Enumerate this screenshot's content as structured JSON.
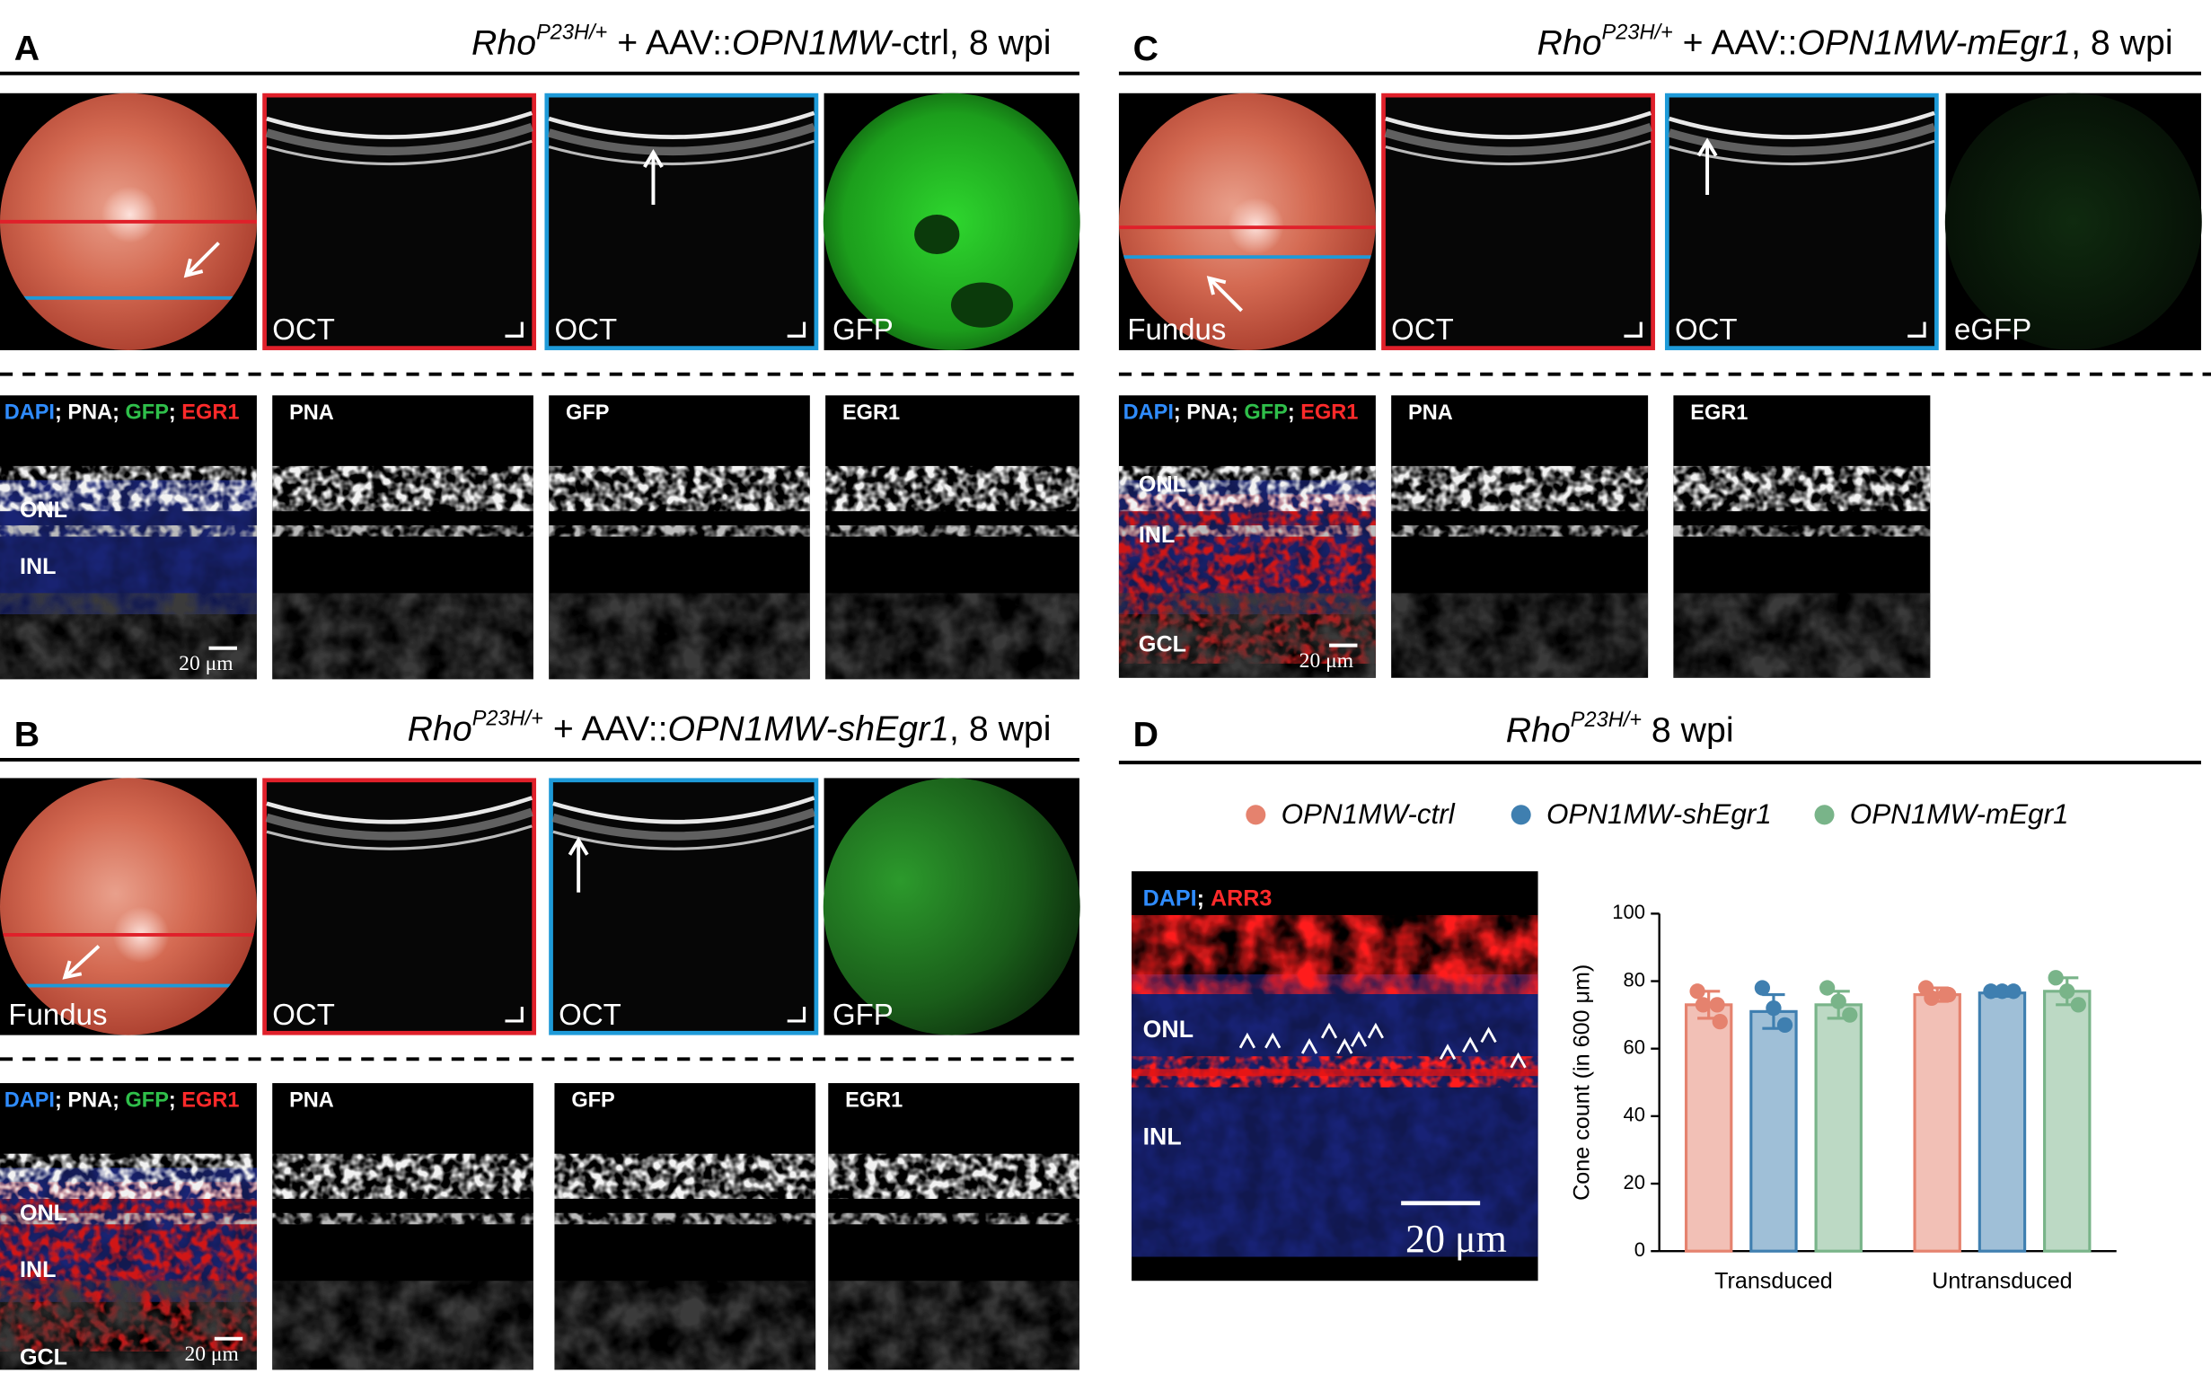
{
  "panels": [
    {
      "letter": "A",
      "title": [
        {
          "text": "Rho",
          "italic": true
        },
        {
          "text": "P23H/+",
          "italic": true,
          "sup": true
        },
        {
          "text": " + AAV::"
        },
        {
          "text": "OPN1MW",
          "italic": true
        },
        {
          "text": "-ctrl, 8 wpi"
        }
      ],
      "oct_labels": [
        "OCT",
        "OCT"
      ],
      "fluor_label": "GFP",
      "stain_labels": [
        {
          "text": "DAPI",
          "color": "#2f8cff"
        },
        {
          "text": "; PNA; ",
          "color": "#ffffff"
        },
        {
          "text": "GFP",
          "color": "#2fbf4a"
        },
        {
          "text": "; ",
          "color": "#ffffff"
        },
        {
          "text": "EGR1",
          "color": "#ff2a2a"
        }
      ],
      "channel_labels": [
        "PNA",
        "GFP",
        "EGR1"
      ],
      "layer_labels": [
        "ONL",
        "INL"
      ],
      "scale_bar": "20 μm"
    },
    {
      "letter": "B",
      "title": [
        {
          "text": "Rho",
          "italic": true
        },
        {
          "text": "P23H/+",
          "italic": true,
          "sup": true
        },
        {
          "text": " + AAV::"
        },
        {
          "text": "OPN1MW-shEgr1",
          "italic": true
        },
        {
          "text": ", 8 wpi"
        }
      ],
      "fundus_label": "Fundus",
      "oct_labels": [
        "OCT",
        "OCT"
      ],
      "fluor_label": "GFP",
      "stain_labels": [
        {
          "text": "DAPI",
          "color": "#2f8cff"
        },
        {
          "text": "; PNA; ",
          "color": "#ffffff"
        },
        {
          "text": "GFP",
          "color": "#2fbf4a"
        },
        {
          "text": "; ",
          "color": "#ffffff"
        },
        {
          "text": "EGR1",
          "color": "#ff2a2a"
        }
      ],
      "channel_labels": [
        "PNA",
        "GFP",
        "EGR1"
      ],
      "layer_labels": [
        "ONL",
        "INL",
        "GCL"
      ],
      "scale_bar": "20 μm"
    },
    {
      "letter": "C",
      "title": [
        {
          "text": "Rho",
          "italic": true
        },
        {
          "text": "P23H/+",
          "italic": true,
          "sup": true
        },
        {
          "text": " + AAV::"
        },
        {
          "text": "OPN1MW-mEgr1",
          "italic": true
        },
        {
          "text": ", 8 wpi"
        }
      ],
      "fundus_label": "Fundus",
      "oct_labels": [
        "OCT",
        "OCT"
      ],
      "fluor_label": "eGFP",
      "stain_labels": [
        {
          "text": "DAPI",
          "color": "#2f8cff"
        },
        {
          "text": "; PNA; ",
          "color": "#ffffff"
        },
        {
          "text": "GFP",
          "color": "#2fbf4a"
        },
        {
          "text": "; ",
          "color": "#ffffff"
        },
        {
          "text": "EGR1",
          "color": "#ff2a2a"
        }
      ],
      "channel_labels": [
        "PNA",
        "EGR1"
      ],
      "layer_labels": [
        "ONL",
        "INL",
        "GCL"
      ],
      "scale_bar": "20 μm"
    }
  ],
  "panel_d": {
    "letter": "D",
    "title": [
      {
        "text": "Rho",
        "italic": true
      },
      {
        "text": "P23H/+",
        "italic": true,
        "sup": true
      },
      {
        "text": " 8 wpi"
      }
    ],
    "image": {
      "stain_labels": [
        {
          "text": "DAPI",
          "color": "#2f8cff"
        },
        {
          "text": "; ",
          "color": "#ffffff"
        },
        {
          "text": "ARR3",
          "color": "#ff2a2a"
        }
      ],
      "layer_labels": [
        "ONL",
        "INL"
      ],
      "scale_bar": "20 μm"
    }
  },
  "chart_data": {
    "type": "bar",
    "ylabel": "Cone count (in 600 μm)",
    "categories": [
      "Transduced",
      "Untransduced"
    ],
    "series": [
      {
        "name": "OPN1MW-ctrl",
        "color": "#e5826e",
        "values": [
          73,
          76
        ],
        "errors": [
          4,
          2
        ],
        "points": [
          [
            77,
            73,
            73,
            68
          ],
          [
            78,
            76,
            75,
            76
          ]
        ]
      },
      {
        "name": "OPN1MW-shEgr1",
        "color": "#3f7fb0",
        "values": [
          71,
          76.5
        ],
        "errors": [
          5,
          1
        ],
        "points": [
          [
            78,
            72,
            67
          ],
          [
            77,
            77,
            77
          ]
        ]
      },
      {
        "name": "OPN1MW-mEgr1",
        "color": "#79b489",
        "values": [
          73,
          77
        ],
        "errors": [
          4,
          4
        ],
        "points": [
          [
            78,
            74,
            70
          ],
          [
            81,
            77,
            73
          ]
        ]
      }
    ],
    "ylim": [
      0,
      100
    ],
    "yticks": [
      0,
      20,
      40,
      60,
      80,
      100
    ],
    "legend": "top"
  }
}
